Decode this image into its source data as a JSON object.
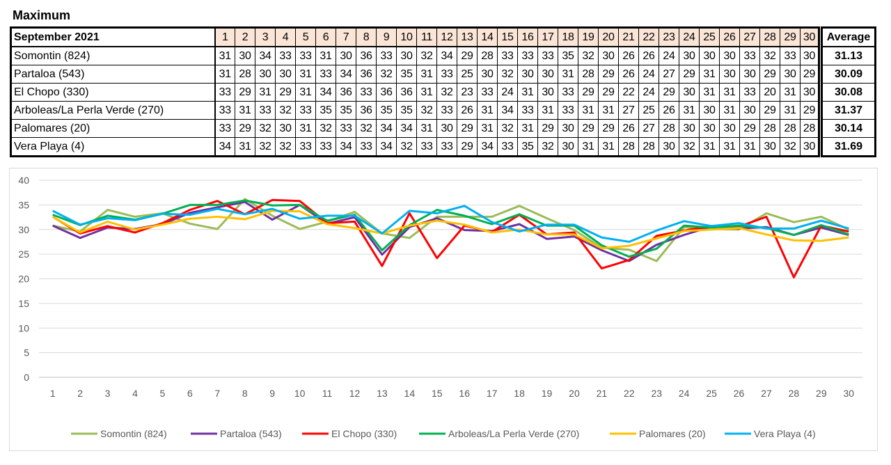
{
  "page_title": "Maximum",
  "table": {
    "month_label": "September 2021",
    "days": [
      "1",
      "2",
      "3",
      "4",
      "5",
      "6",
      "7",
      "8",
      "9",
      "10",
      "11",
      "12",
      "13",
      "14",
      "15",
      "16",
      "17",
      "18",
      "19",
      "20",
      "21",
      "22",
      "23",
      "24",
      "25",
      "26",
      "27",
      "28",
      "29",
      "30"
    ],
    "average_label": "Average",
    "rows": [
      {
        "name": "Somontin (824)",
        "values": [
          31,
          30,
          34,
          33,
          33,
          31,
          30,
          36,
          33,
          30,
          32,
          34,
          29,
          28,
          33,
          33,
          33,
          35,
          32,
          30,
          26,
          26,
          24,
          30,
          30,
          30,
          33,
          32,
          33,
          30
        ],
        "average": "31.13"
      },
      {
        "name": "Partaloa (543)",
        "values": [
          31,
          28,
          30,
          30,
          31,
          33,
          34,
          36,
          32,
          35,
          31,
          33,
          25,
          30,
          32,
          30,
          30,
          31,
          28,
          29,
          26,
          24,
          27,
          29,
          31,
          30,
          30,
          29,
          30,
          29
        ],
        "average": "30.09"
      },
      {
        "name": "El Chopo (330)",
        "values": [
          33,
          29,
          31,
          29,
          31,
          34,
          36,
          33,
          36,
          36,
          31,
          32,
          23,
          33,
          24,
          31,
          30,
          33,
          29,
          29,
          22,
          24,
          29,
          30,
          31,
          31,
          33,
          20,
          31,
          30
        ],
        "average": "30.08"
      },
      {
        "name": "Arboleas/La Perla Verde (270)",
        "values": [
          33,
          31,
          33,
          32,
          33,
          35,
          35,
          36,
          35,
          35,
          32,
          33,
          26,
          31,
          34,
          33,
          31,
          33,
          31,
          31,
          27,
          25,
          26,
          31,
          30,
          31,
          30,
          29,
          31,
          29
        ],
        "average": "31.37"
      },
      {
        "name": "Palomares (20)",
        "values": [
          33,
          29,
          32,
          30,
          31,
          32,
          33,
          32,
          34,
          34,
          31,
          30,
          29,
          31,
          32,
          31,
          29,
          30,
          29,
          29,
          26,
          27,
          28,
          30,
          30,
          30,
          29,
          28,
          28,
          28
        ],
        "average": "30.14"
      },
      {
        "name": "Vera Playa (4)",
        "values": [
          34,
          31,
          32,
          32,
          33,
          33,
          34,
          33,
          34,
          32,
          33,
          33,
          29,
          34,
          33,
          35,
          32,
          30,
          31,
          31,
          28,
          28,
          30,
          32,
          31,
          31,
          31,
          30,
          32,
          30
        ],
        "average": "31.69"
      }
    ]
  },
  "chart_data": {
    "type": "line",
    "title": "",
    "xlabel": "",
    "ylabel": "",
    "x": [
      1,
      2,
      3,
      4,
      5,
      6,
      7,
      8,
      9,
      10,
      11,
      12,
      13,
      14,
      15,
      16,
      17,
      18,
      19,
      20,
      21,
      22,
      23,
      24,
      25,
      26,
      27,
      28,
      29,
      30
    ],
    "ylim": [
      0,
      40
    ],
    "yticks": [
      0,
      5,
      10,
      15,
      20,
      25,
      30,
      35,
      40
    ],
    "grid": true,
    "legend_position": "bottom",
    "series": [
      {
        "name": "Somontin (824)",
        "color": "#9bbb59",
        "values": [
          30.8,
          29.6,
          34.0,
          32.6,
          33.3,
          31.2,
          30.1,
          36.2,
          32.8,
          30.1,
          31.6,
          33.6,
          29.2,
          28.3,
          32.6,
          32.6,
          32.6,
          34.8,
          32.3,
          29.9,
          26.3,
          25.9,
          23.6,
          30.5,
          30.1,
          30.0,
          33.3,
          31.5,
          32.6,
          30.0
        ]
      },
      {
        "name": "Partaloa (543)",
        "color": "#7030a0",
        "values": [
          30.8,
          28.3,
          30.4,
          30.1,
          31.1,
          33.4,
          34.5,
          35.6,
          32.0,
          35.0,
          31.2,
          32.5,
          24.9,
          30.5,
          32.3,
          29.9,
          29.7,
          31.1,
          28.1,
          28.6,
          25.8,
          23.6,
          26.9,
          28.9,
          30.6,
          30.2,
          30.5,
          28.9,
          30.4,
          28.9
        ]
      },
      {
        "name": "El Chopo (330)",
        "color": "#ff0000",
        "values": [
          32.6,
          29.2,
          30.7,
          29.4,
          31.3,
          34.0,
          35.8,
          33.1,
          36.0,
          35.8,
          31.3,
          31.6,
          22.6,
          33.3,
          24.2,
          30.8,
          29.5,
          33.0,
          29.0,
          29.4,
          22.1,
          23.8,
          28.7,
          29.8,
          30.7,
          30.6,
          32.6,
          20.3,
          30.8,
          29.6
        ]
      },
      {
        "name": "Arboleas/La Perla Verde (270)",
        "color": "#00b050",
        "values": [
          33.0,
          30.9,
          32.8,
          32.0,
          33.2,
          35.0,
          35.0,
          35.9,
          34.9,
          35.0,
          31.8,
          33.0,
          25.8,
          30.9,
          34.0,
          32.8,
          31.1,
          33.1,
          30.8,
          30.8,
          26.8,
          24.5,
          26.1,
          30.8,
          30.4,
          30.8,
          30.3,
          28.9,
          30.9,
          29.0
        ]
      },
      {
        "name": "Palomares (20)",
        "color": "#ffc000",
        "values": [
          32.6,
          29.4,
          31.6,
          30.0,
          31.0,
          32.2,
          32.6,
          32.1,
          33.8,
          33.7,
          31.1,
          30.3,
          29.2,
          30.8,
          31.8,
          31.0,
          29.4,
          30.0,
          29.0,
          29.0,
          26.2,
          26.7,
          28.2,
          29.7,
          30.0,
          30.3,
          29.0,
          27.8,
          27.7,
          28.4
        ]
      },
      {
        "name": "Vera Playa (4)",
        "color": "#00b0f0",
        "values": [
          33.8,
          31.0,
          32.3,
          31.9,
          33.2,
          33.0,
          34.2,
          33.1,
          34.2,
          32.2,
          32.8,
          32.8,
          29.2,
          33.8,
          33.3,
          34.8,
          31.5,
          29.6,
          31.0,
          31.0,
          28.4,
          27.5,
          29.8,
          31.7,
          30.7,
          31.3,
          30.2,
          30.2,
          31.8,
          30.2
        ]
      }
    ]
  }
}
